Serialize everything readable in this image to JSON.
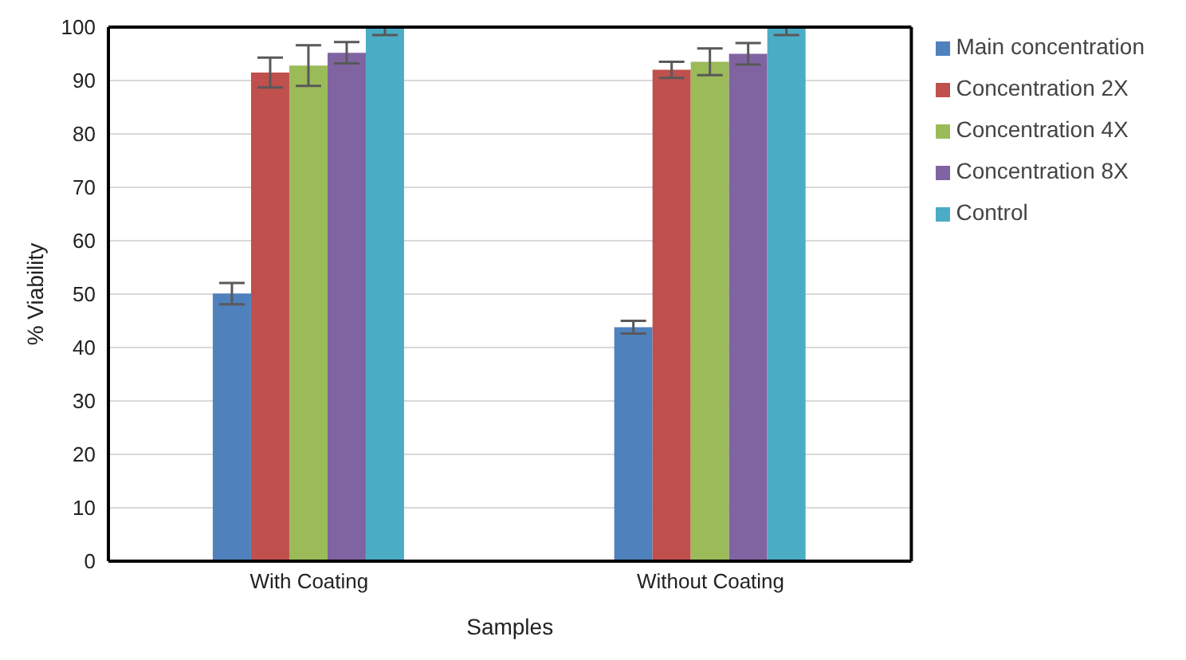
{
  "chart_data": {
    "type": "bar",
    "xlabel": "Samples",
    "ylabel": "% Viability",
    "categories": [
      "With Coating",
      "Without Coating"
    ],
    "series": [
      {
        "name": "Main concentration",
        "color": "#4f81bd",
        "values": [
          50.1,
          43.8
        ],
        "errors": [
          2,
          1.2
        ]
      },
      {
        "name": "Concentration 2X",
        "color": "#c0504d",
        "values": [
          91.5,
          92
        ],
        "errors": [
          2.8,
          1.5
        ]
      },
      {
        "name": "Concentration 4X",
        "color": "#9bbb59",
        "values": [
          92.8,
          93.5
        ],
        "errors": [
          3.8,
          2.5
        ]
      },
      {
        "name": "Concentration 8X",
        "color": "#8064a2",
        "values": [
          95.2,
          95
        ],
        "errors": [
          2,
          2
        ]
      },
      {
        "name": "Control",
        "color": "#4bacc6",
        "values": [
          100,
          100
        ],
        "errors": [
          [
            98.5,
            100
          ],
          [
            98.5,
            100
          ]
        ]
      }
    ],
    "ylim": [
      0,
      100
    ],
    "yticks": [
      0,
      10,
      20,
      30,
      40,
      50,
      60,
      70,
      80,
      90,
      100
    ],
    "grid": "y",
    "legend": "top right"
  }
}
